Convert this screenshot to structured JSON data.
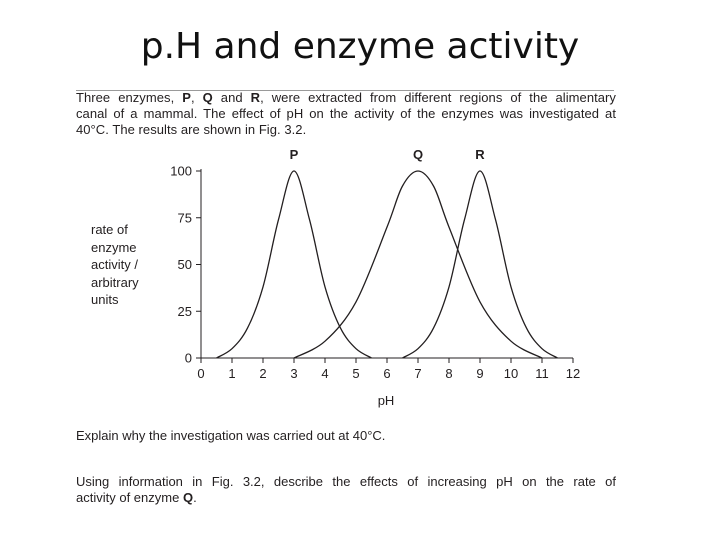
{
  "title": "p.H and enzyme activity",
  "intro": {
    "line1": [
      "Three enzymes, ",
      "P",
      ", ",
      "Q",
      " and ",
      "R",
      ", were extracted from different regions of the alimentary"
    ],
    "line2": "canal of a mammal. The effect of pH on the activity of the enzymes was investigated at",
    "line3": "40°C. The results are shown in Fig. 3.2."
  },
  "ylabel_lines": [
    "rate of",
    "enzyme",
    "activity /",
    "arbitrary",
    "units"
  ],
  "question1": "Explain why the investigation was carried out at 40°C.",
  "question2": {
    "line1": "Using information in Fig. 3.2, describe the effects of increasing pH on the rate of",
    "line2_prefix": "activity of enzyme ",
    "line2_bold": "Q",
    "line2_suffix": "."
  },
  "chart_data": {
    "type": "line",
    "xlabel": "pH",
    "ylabel": "rate of enzyme activity / arbitrary units",
    "xlim": [
      0,
      12
    ],
    "ylim": [
      0,
      100
    ],
    "x_ticks": [
      0,
      1,
      2,
      3,
      4,
      5,
      6,
      7,
      8,
      9,
      10,
      11,
      12
    ],
    "y_ticks": [
      0,
      25,
      50,
      75,
      100
    ],
    "grid": false,
    "series": [
      {
        "name": "P",
        "x": [
          0.5,
          1,
          1.5,
          2,
          2.5,
          3,
          3.5,
          4,
          4.5,
          5,
          5.5
        ],
        "y": [
          0,
          5,
          16,
          38,
          74,
          100,
          74,
          38,
          16,
          5,
          0
        ]
      },
      {
        "name": "Q",
        "x": [
          3,
          4,
          5,
          6,
          6.5,
          7,
          7.5,
          8,
          9,
          10,
          11
        ],
        "y": [
          0,
          9,
          30,
          70,
          92,
          100,
          92,
          70,
          30,
          9,
          0
        ]
      },
      {
        "name": "R",
        "x": [
          6.5,
          7,
          7.5,
          8,
          8.5,
          9,
          9.5,
          10,
          10.5,
          11,
          11.5
        ],
        "y": [
          0,
          5,
          16,
          38,
          74,
          100,
          74,
          38,
          16,
          5,
          0
        ]
      }
    ]
  },
  "colors": {
    "ink": "#231f20",
    "title": "#111111",
    "rule": "#9a9a9a"
  }
}
